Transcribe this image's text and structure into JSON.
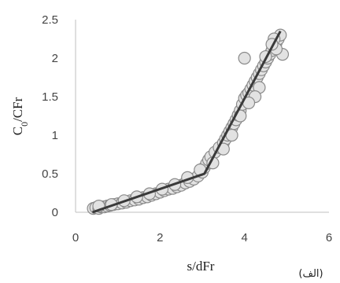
{
  "chart_data": {
    "type": "scatter",
    "xlabel": "s/dFr",
    "ylabel": "C0/CFr",
    "ylabel_main": "C",
    "ylabel_sub": "0",
    "ylabel_rest": "/CFr",
    "caption": "(الف)",
    "xlim": [
      0,
      6
    ],
    "ylim": [
      0,
      2.5
    ],
    "x_ticks": [
      "0",
      "2",
      "4",
      "6"
    ],
    "y_ticks": [
      "0",
      "0.5",
      "1",
      "1.5",
      "2",
      "2.5"
    ],
    "grid": false,
    "series": [
      {
        "kind": "points",
        "marker_fill": "#e2e2e2",
        "marker_edge": "#8a8a8a",
        "points": [
          [
            0.42,
            0.05
          ],
          [
            0.48,
            0.06
          ],
          [
            0.55,
            0.05
          ],
          [
            0.6,
            0.07
          ],
          [
            0.68,
            0.07
          ],
          [
            0.75,
            0.08
          ],
          [
            0.82,
            0.09
          ],
          [
            0.9,
            0.1
          ],
          [
            1.0,
            0.11
          ],
          [
            1.1,
            0.12
          ],
          [
            1.2,
            0.13
          ],
          [
            1.3,
            0.15
          ],
          [
            1.4,
            0.16
          ],
          [
            1.5,
            0.17
          ],
          [
            1.6,
            0.19
          ],
          [
            1.7,
            0.2
          ],
          [
            1.8,
            0.22
          ],
          [
            1.9,
            0.24
          ],
          [
            2.0,
            0.26
          ],
          [
            2.1,
            0.28
          ],
          [
            2.2,
            0.3
          ],
          [
            2.3,
            0.31
          ],
          [
            2.4,
            0.33
          ],
          [
            2.5,
            0.35
          ],
          [
            2.6,
            0.38
          ],
          [
            2.7,
            0.4
          ],
          [
            2.8,
            0.43
          ],
          [
            2.9,
            0.47
          ],
          [
            3.0,
            0.52
          ],
          [
            3.05,
            0.58
          ],
          [
            3.1,
            0.63
          ],
          [
            3.15,
            0.68
          ],
          [
            3.2,
            0.72
          ],
          [
            3.3,
            0.78
          ],
          [
            3.4,
            0.84
          ],
          [
            3.5,
            0.9
          ],
          [
            3.55,
            0.95
          ],
          [
            3.6,
            1.0
          ],
          [
            3.65,
            1.05
          ],
          [
            3.7,
            1.1
          ],
          [
            3.75,
            1.15
          ],
          [
            3.8,
            1.2
          ],
          [
            3.85,
            1.26
          ],
          [
            3.9,
            1.32
          ],
          [
            3.95,
            1.4
          ],
          [
            4.0,
            1.48
          ],
          [
            4.05,
            1.52
          ],
          [
            4.1,
            1.55
          ],
          [
            4.15,
            1.6
          ],
          [
            4.2,
            1.65
          ],
          [
            4.25,
            1.7
          ],
          [
            4.3,
            1.75
          ],
          [
            4.35,
            1.8
          ],
          [
            4.4,
            1.85
          ],
          [
            4.45,
            1.9
          ],
          [
            4.5,
            1.95
          ],
          [
            4.55,
            2.0
          ],
          [
            4.6,
            2.05
          ],
          [
            4.65,
            2.1
          ],
          [
            4.7,
            2.15
          ],
          [
            4.75,
            2.2
          ],
          [
            4.8,
            2.25
          ],
          [
            4.85,
            2.3
          ],
          [
            4.0,
            2.0
          ],
          [
            4.9,
            2.05
          ],
          [
            4.75,
            2.12
          ],
          [
            4.7,
            2.25
          ],
          [
            4.65,
            2.18
          ],
          [
            4.5,
            2.02
          ],
          [
            4.35,
            1.62
          ],
          [
            4.25,
            1.5
          ],
          [
            4.1,
            1.42
          ],
          [
            3.9,
            1.25
          ],
          [
            3.7,
            1.0
          ],
          [
            3.5,
            0.82
          ],
          [
            3.25,
            0.64
          ],
          [
            2.95,
            0.55
          ],
          [
            2.65,
            0.45
          ],
          [
            2.35,
            0.36
          ],
          [
            2.05,
            0.3
          ],
          [
            1.75,
            0.24
          ],
          [
            1.45,
            0.2
          ],
          [
            1.15,
            0.15
          ],
          [
            0.85,
            0.1
          ],
          [
            0.55,
            0.08
          ]
        ]
      },
      {
        "kind": "fit-line",
        "line_color": "#3a3a3a",
        "points": [
          [
            0.4,
            0.0
          ],
          [
            3.05,
            0.5
          ],
          [
            4.85,
            2.35
          ]
        ]
      }
    ]
  }
}
